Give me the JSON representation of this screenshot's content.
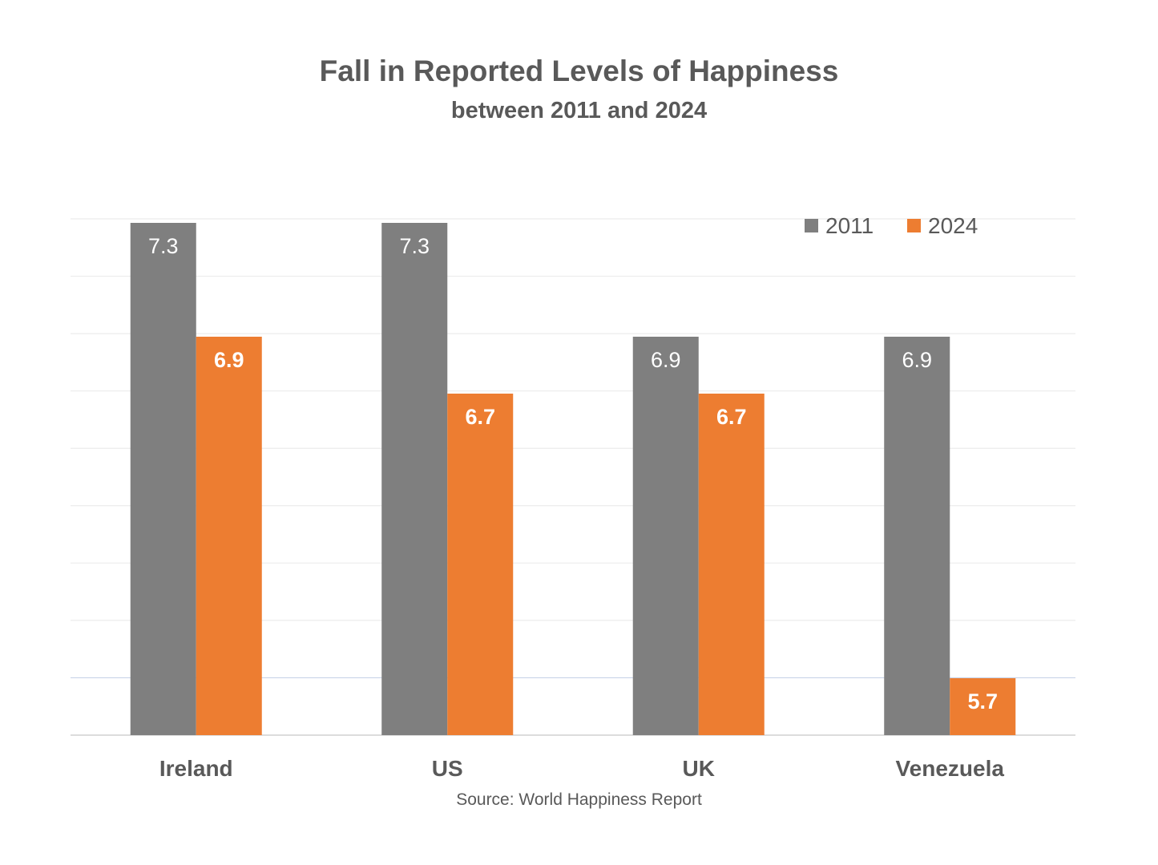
{
  "chart_data": {
    "type": "bar",
    "title": "Fall in Reported Levels of Happiness",
    "subtitle": "between 2011 and 2024",
    "source": "Source: World Happiness Report",
    "categories": [
      "Ireland",
      "US",
      "UK",
      "Venezuela"
    ],
    "series": [
      {
        "name": "2011",
        "color": "#7f7f7f",
        "values": [
          7.3,
          7.3,
          6.9,
          6.9
        ],
        "labels": [
          "7.3",
          "7.3",
          "6.9",
          "6.9"
        ]
      },
      {
        "name": "2024",
        "color": "#ed7d31",
        "values": [
          6.9,
          6.7,
          6.7,
          5.7
        ],
        "labels": [
          "6.9",
          "6.7",
          "6.7",
          "5.7"
        ]
      }
    ],
    "ylim": [
      5.5,
      7.3
    ],
    "grid": true,
    "legend": "top-right"
  }
}
